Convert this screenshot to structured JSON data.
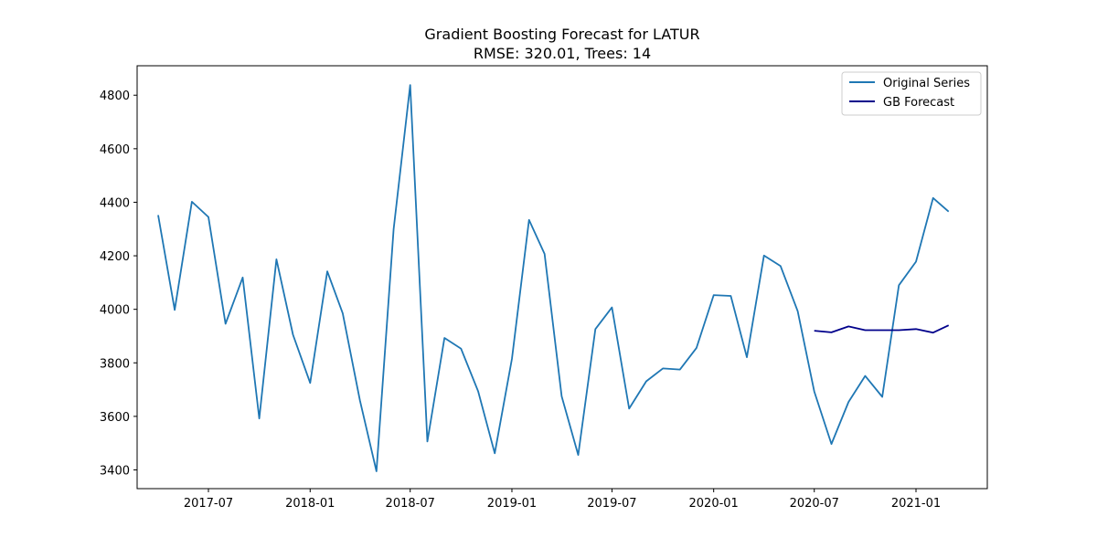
{
  "chart_data": {
    "type": "line",
    "title": "Gradient Boosting Forecast for LATUR",
    "subtitle": "RMSE: 320.01, Trees: 14",
    "xlabel": "",
    "ylabel": "",
    "ylim": [
      3330,
      4910
    ],
    "xlim": [
      "2017-02-22",
      "2021-05-10"
    ],
    "x_ticks": [
      "2017-07",
      "2018-01",
      "2018-07",
      "2019-01",
      "2019-07",
      "2020-01",
      "2020-07",
      "2021-01"
    ],
    "y_ticks": [
      3400,
      3600,
      3800,
      4000,
      4200,
      4400,
      4600,
      4800
    ],
    "grid": false,
    "legend_position": "upper right",
    "series": [
      {
        "name": "Original Series",
        "color": "#1f77b4",
        "x": [
          "2017-04",
          "2017-05",
          "2017-06",
          "2017-07",
          "2017-08",
          "2017-09",
          "2017-10",
          "2017-11",
          "2017-12",
          "2018-01",
          "2018-02",
          "2018-03",
          "2018-04",
          "2018-05",
          "2018-06",
          "2018-07",
          "2018-08",
          "2018-09",
          "2018-10",
          "2018-11",
          "2018-12",
          "2019-01",
          "2019-02",
          "2019-03",
          "2019-04",
          "2019-05",
          "2019-06",
          "2019-07",
          "2019-08",
          "2019-09",
          "2019-10",
          "2019-11",
          "2019-12",
          "2020-01",
          "2020-02",
          "2020-03",
          "2020-04",
          "2020-05",
          "2020-06",
          "2020-07",
          "2020-08",
          "2020-09",
          "2020-10",
          "2020-11",
          "2020-12",
          "2021-01",
          "2021-02",
          "2021-03"
        ],
        "values": [
          4352,
          3998,
          4402,
          4345,
          3946,
          4119,
          3592,
          4187,
          3905,
          3725,
          4142,
          3985,
          3660,
          3395,
          4300,
          4838,
          3506,
          3893,
          3853,
          3693,
          3462,
          3815,
          4334,
          4207,
          3675,
          3456,
          3926,
          4007,
          3629,
          3731,
          3779,
          3775,
          3856,
          4053,
          4050,
          3821,
          4201,
          4162,
          3993,
          3693,
          3497,
          3654,
          3751,
          3673,
          4090,
          4178,
          4416,
          4365
        ]
      },
      {
        "name": "GB Forecast",
        "color": "#00008b",
        "x": [
          "2020-07",
          "2020-08",
          "2020-09",
          "2020-10",
          "2020-11",
          "2020-12",
          "2021-01",
          "2021-02",
          "2021-03"
        ],
        "values": [
          3920,
          3914,
          3936,
          3922,
          3922,
          3922,
          3926,
          3913,
          3940
        ]
      }
    ]
  }
}
